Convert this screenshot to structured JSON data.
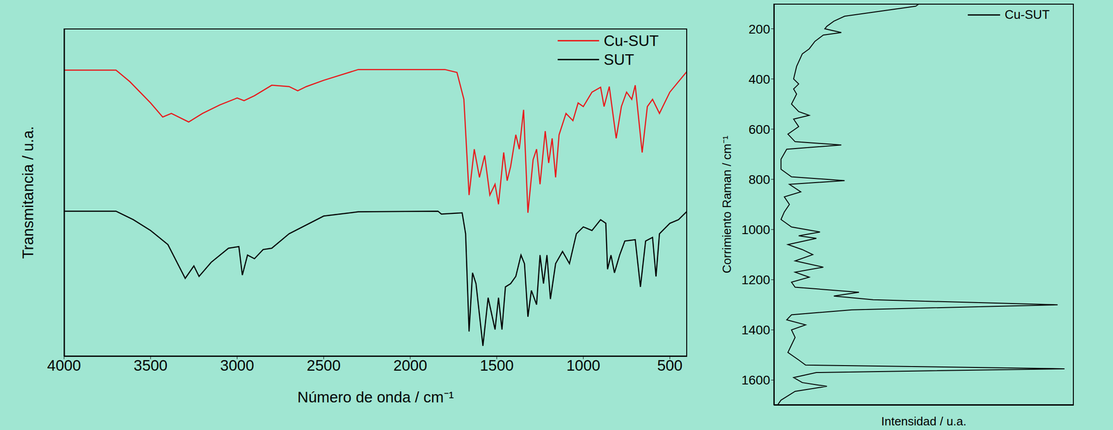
{
  "chart_data": [
    {
      "type": "line",
      "x_label": "Número de onda / cm⁻¹",
      "y_label": "Transmitancia / u.a.",
      "xlim": [
        4000,
        400
      ],
      "ylim": [
        0,
        100
      ],
      "xticks": [
        4000,
        3500,
        3000,
        2500,
        2000,
        1500,
        1000,
        500
      ],
      "tick_labels": "x",
      "legend": "upper right",
      "series": [
        {
          "name": "Cu-SUT",
          "color": "#e8191b",
          "x": [
            4000,
            3700,
            3620,
            3500,
            3430,
            3380,
            3280,
            3200,
            3100,
            3000,
            2960,
            2900,
            2800,
            2700,
            2650,
            2600,
            2500,
            2300,
            1800,
            1730,
            1690,
            1660,
            1630,
            1600,
            1570,
            1540,
            1510,
            1490,
            1460,
            1440,
            1420,
            1390,
            1370,
            1345,
            1320,
            1290,
            1270,
            1250,
            1220,
            1200,
            1180,
            1160,
            1140,
            1100,
            1060,
            1030,
            1000,
            950,
            900,
            880,
            850,
            810,
            780,
            750,
            720,
            700,
            660,
            630,
            600,
            560,
            500,
            450,
            400
          ],
          "y": [
            87.3,
            87.3,
            83.8,
            77.3,
            73,
            74.1,
            71.5,
            74.1,
            76.7,
            78.8,
            78,
            79.5,
            82.7,
            82.3,
            81,
            82.3,
            84.2,
            87.5,
            87.5,
            86.6,
            78.4,
            49.2,
            63.2,
            54.6,
            61.3,
            49.2,
            52.5,
            46.4,
            62.2,
            53.6,
            57.9,
            67.6,
            63.2,
            75.2,
            43.8,
            60,
            63.2,
            52.5,
            68.7,
            59,
            66.5,
            54.6,
            67.6,
            74.1,
            71.9,
            77.3,
            76.2,
            80.6,
            82.1,
            76.2,
            82.3,
            66.5,
            76.2,
            80.6,
            78.4,
            82.7,
            62.2,
            76.2,
            78.4,
            74.1,
            80.6,
            83.8,
            87
          ]
        },
        {
          "name": "SUT",
          "color": "#000000",
          "x": [
            4000,
            3700,
            3600,
            3500,
            3400,
            3300,
            3250,
            3220,
            3150,
            3050,
            2990,
            2970,
            2940,
            2900,
            2850,
            2800,
            2700,
            2500,
            2300,
            1840,
            1820,
            1700,
            1680,
            1660,
            1640,
            1620,
            1580,
            1550,
            1510,
            1490,
            1470,
            1450,
            1420,
            1390,
            1360,
            1340,
            1320,
            1300,
            1270,
            1250,
            1230,
            1210,
            1190,
            1160,
            1120,
            1080,
            1040,
            1000,
            950,
            900,
            870,
            860,
            840,
            820,
            790,
            760,
            700,
            670,
            640,
            600,
            580,
            560,
            500,
            450,
            400
          ],
          "y": [
            44.3,
            44.3,
            41.7,
            38.4,
            34.1,
            23.8,
            27.6,
            24.4,
            28.7,
            33,
            33.5,
            24.8,
            30.9,
            29.8,
            32.6,
            33,
            37.4,
            42.8,
            44.1,
            44.3,
            43.4,
            43.8,
            37.4,
            7.6,
            25.5,
            22.2,
            3.2,
            17.9,
            8.2,
            17.9,
            8.2,
            21.2,
            22.2,
            24.4,
            30.9,
            28.3,
            12.1,
            20.1,
            15.8,
            30.9,
            22.2,
            30.9,
            17.5,
            28.3,
            32,
            28.3,
            37.4,
            39.5,
            38.4,
            41.7,
            40.6,
            26.6,
            30.9,
            25.5,
            30.9,
            35.2,
            35.6,
            21.2,
            35.2,
            36.3,
            24.4,
            37.4,
            40.6,
            41.7,
            44.3
          ]
        }
      ]
    },
    {
      "type": "line",
      "x_label": "Intensidad / u.a.",
      "y_label": "Corrimiento Raman / cm⁻¹",
      "xlim": [
        0,
        100
      ],
      "ylim": [
        100,
        1700
      ],
      "yticks": [
        200,
        400,
        600,
        800,
        1000,
        1200,
        1400,
        1600
      ],
      "tick_labels": "y",
      "legend": "upper right",
      "series": [
        {
          "name": "Cu-SUT",
          "color": "#000000",
          "y": [
            100,
            110,
            140,
            150,
            170,
            190,
            200,
            215,
            225,
            250,
            280,
            300,
            350,
            400,
            420,
            440,
            460,
            500,
            530,
            545,
            560,
            590,
            620,
            650,
            663,
            680,
            720,
            760,
            790,
            805,
            820,
            850,
            870,
            900,
            930,
            960,
            990,
            1010,
            1025,
            1035,
            1060,
            1080,
            1100,
            1125,
            1150,
            1170,
            1190,
            1210,
            1230,
            1250,
            1265,
            1280,
            1300,
            1320,
            1340,
            1360,
            1380,
            1400,
            1430,
            1460,
            1490,
            1520,
            1540,
            1555,
            1570,
            1590,
            1610,
            1625,
            1645,
            1680,
            1700
          ],
          "x": [
            48.5,
            47.3,
            29.6,
            23.6,
            20,
            17.7,
            17,
            22.5,
            16.5,
            13.7,
            11.8,
            9.5,
            7.6,
            6.6,
            8.3,
            6.6,
            7.6,
            5.9,
            8.3,
            11.8,
            6.6,
            8.3,
            4.7,
            7.1,
            22.5,
            4.3,
            2.4,
            2.4,
            5.9,
            23.6,
            5.2,
            9,
            3.5,
            5.2,
            3.5,
            2.4,
            5.9,
            15.4,
            8.3,
            14.2,
            4.7,
            9.5,
            13,
            7.1,
            16.5,
            7.1,
            11.8,
            5.9,
            7.1,
            28.4,
            20,
            33.1,
            94.6,
            26,
            5.9,
            4.3,
            10.6,
            5.9,
            7.1,
            5.9,
            4.7,
            8.3,
            10.6,
            96.9,
            14.2,
            6.6,
            9.5,
            17.7,
            7.1,
            2.4,
            1.2
          ]
        }
      ]
    }
  ]
}
